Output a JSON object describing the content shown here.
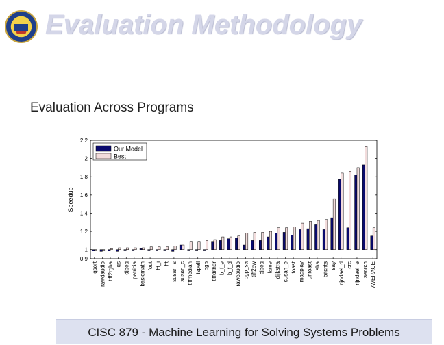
{
  "slide": {
    "title": "Evaluation Methodology",
    "subtitle": "Evaluation Across Programs",
    "footer": "CISC 879 - Machine Learning for Solving Systems Problems",
    "logo_icon": "university-seal-icon"
  },
  "colors": {
    "title": "#d4d6e8",
    "our_model": "#0a0a6e",
    "best": "#f2dcdc",
    "footer_bg": "#dde1f0"
  },
  "chart_data": {
    "type": "bar",
    "xlabel": "",
    "ylabel": "Speedup",
    "ylim": [
      0.9,
      2.2
    ],
    "yticks": [
      0.9,
      1,
      1.2,
      1.4,
      1.6,
      1.8,
      2,
      2.2
    ],
    "legend_placement": "top-left",
    "grid": false,
    "categories": [
      "qsort",
      "rawdaudio",
      "tiff2rgba",
      "gs",
      "djpeg",
      "patricia",
      "basicmath",
      "fout",
      "fft_i",
      "fft",
      "susan_s",
      "susan_c",
      "tiffmedian",
      "ispell",
      "pgp",
      "tiffdither",
      "b_f_e",
      "b_f_d",
      "rawcaudio",
      "pgp_sa",
      "tiff2bw",
      "cjpeg",
      "lame",
      "dijkstra",
      "susan_e",
      "toast",
      "madplay",
      "untoast",
      "sha",
      "bitcnts",
      "say",
      "rijndael_d",
      "crc",
      "rijndael_e",
      "search",
      "AVERAGE"
    ],
    "series": [
      {
        "name": "Our Model",
        "values": [
          0.99,
          0.98,
          0.99,
          0.98,
          1.0,
          1.0,
          1.01,
          1.0,
          1.0,
          1.0,
          0.98,
          1.05,
          1.0,
          1.0,
          1.0,
          1.09,
          1.1,
          1.12,
          1.13,
          1.05,
          1.1,
          1.1,
          1.14,
          1.18,
          1.19,
          1.16,
          1.22,
          1.23,
          1.28,
          1.22,
          1.35,
          1.77,
          1.24,
          1.82,
          1.93,
          1.15
        ]
      },
      {
        "name": "Best",
        "values": [
          1.0,
          1.0,
          1.01,
          1.02,
          1.02,
          1.02,
          1.02,
          1.03,
          1.03,
          1.03,
          1.04,
          1.05,
          1.09,
          1.09,
          1.1,
          1.11,
          1.14,
          1.14,
          1.15,
          1.18,
          1.19,
          1.19,
          1.2,
          1.24,
          1.24,
          1.25,
          1.29,
          1.31,
          1.32,
          1.33,
          1.56,
          1.84,
          1.86,
          1.9,
          2.13,
          1.24
        ]
      }
    ]
  }
}
